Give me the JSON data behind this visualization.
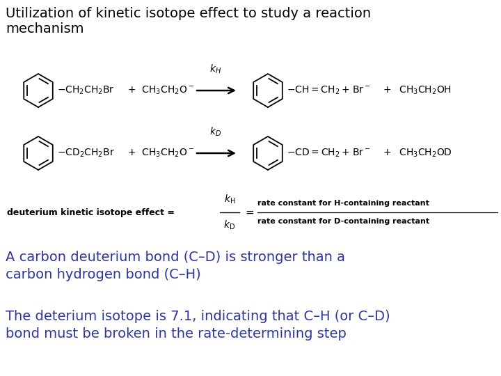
{
  "background_color": "#ffffff",
  "title_text": "Utilization of kinetic isotope effect to study a reaction\nmechanism",
  "title_color": "#000000",
  "title_fontsize": 14,
  "blue_color": "#2E3699",
  "text_block1": "A carbon deuterium bond (C–D) is stronger than a\ncarbon hydrogen bond (C–H)",
  "text_block2": "The deterium isotope is 7.1, indicating that C–H (or C–D)\nbond must be broken in the rate-determining step",
  "text_fontsize": 14,
  "formula_left": "deuterium kinetic isotope effect = ",
  "formula_right_top": "rate constant for H-containing reactant",
  "formula_right_bot": "rate constant for D-containing reactant"
}
